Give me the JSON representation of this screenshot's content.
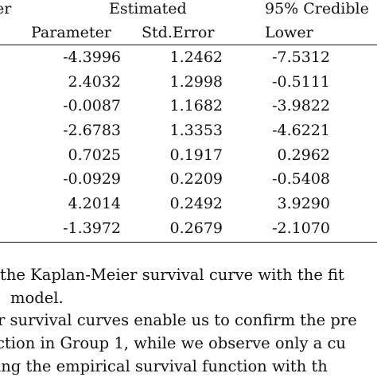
{
  "table": {
    "header": {
      "col0_fragment": "er",
      "estimated": "Estimated",
      "credible": "95% Credible",
      "parameter": "Parameter",
      "std_error": "Std.Error",
      "lower": "Lower"
    },
    "rows": [
      {
        "estimate": "-4.3996",
        "std_error": "1.2462",
        "lower": "-7.5312"
      },
      {
        "estimate": "2.4032",
        "std_error": "1.2998",
        "lower": "-0.5111"
      },
      {
        "estimate": "-0.0087",
        "std_error": "1.1682",
        "lower": "-3.9822"
      },
      {
        "estimate": "-2.6783",
        "std_error": "1.3353",
        "lower": "-4.6221"
      },
      {
        "estimate": "0.7025",
        "std_error": "0.1917",
        "lower": "0.2962"
      },
      {
        "estimate": "-0.0929",
        "std_error": "0.2209",
        "lower": "-0.5408"
      },
      {
        "estimate": "4.2014",
        "std_error": "0.2492",
        "lower": "3.9290"
      },
      {
        "estimate": "-1.3972",
        "std_error": "0.2679",
        "lower": "-2.1070"
      }
    ]
  },
  "body_text": {
    "line1": "the Kaplan-Meier survival curve with the fit",
    "line2": "model.",
    "line3": "r survival curves enable us to confirm the pre",
    "line4": "ction in Group 1, while we observe only a cu",
    "line5": "ing the empirical survival function with th"
  }
}
